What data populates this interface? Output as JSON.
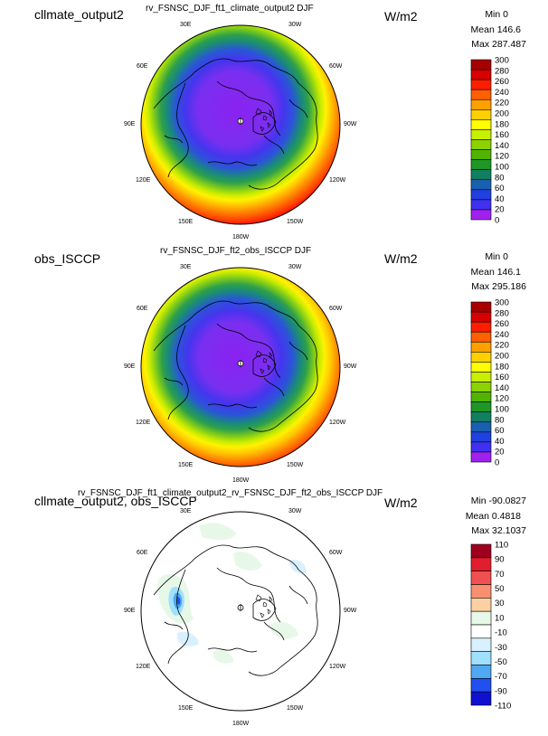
{
  "panels": [
    {
      "id": "p1",
      "left_title": "cllmate_output2",
      "center_title": "rv_FSNSC_DJF_ft1_climate_output2  DJF",
      "units": "W/m2",
      "stats": [
        "Min 0",
        "Mean 146.6",
        "Max 287.487"
      ],
      "colorbar_labels": [
        "300",
        "280",
        "260",
        "240",
        "220",
        "200",
        "180",
        "160",
        "140",
        "120",
        "100",
        "80",
        "60",
        "40",
        "20",
        "0"
      ],
      "colorbar_colors": [
        "#a80000",
        "#d80000",
        "#ff1e00",
        "#ff6000",
        "#ffa000",
        "#ffd000",
        "#ffff00",
        "#c8f000",
        "#8cd200",
        "#50b400",
        "#1e9628",
        "#108060",
        "#1a60b0",
        "#2040e0",
        "#4030f0",
        "#a020f0"
      ],
      "lon_labels": [
        "30E",
        "30W",
        "60E",
        "60W",
        "90E",
        "90W",
        "120E",
        "120W",
        "150E",
        "150W",
        "180W"
      ]
    },
    {
      "id": "p2",
      "left_title": "obs_ISCCP",
      "center_title": "rv_FSNSC_DJF_ft2_obs_ISCCP  DJF",
      "units": "W/m2",
      "stats": [
        "Min 0",
        "Mean 146.1",
        "Max 295.186"
      ],
      "colorbar_labels": [
        "300",
        "280",
        "260",
        "240",
        "220",
        "200",
        "180",
        "160",
        "140",
        "120",
        "100",
        "80",
        "60",
        "40",
        "20",
        "0"
      ],
      "colorbar_colors": [
        "#a80000",
        "#d80000",
        "#ff1e00",
        "#ff6000",
        "#ffa000",
        "#ffd000",
        "#ffff00",
        "#c8f000",
        "#8cd200",
        "#50b400",
        "#1e9628",
        "#108060",
        "#1a60b0",
        "#2040e0",
        "#4030f0",
        "#a020f0"
      ],
      "lon_labels": [
        "30E",
        "30W",
        "60E",
        "60W",
        "90E",
        "90W",
        "120E",
        "120W",
        "150E",
        "150W",
        "180W"
      ]
    },
    {
      "id": "p3",
      "left_title": "cllmate_output2, obs_ISCCP",
      "center_title": "rv_FSNSC_DJF_ft1_climate_output2_rv_FSNSC_DJF_ft2_obs_ISCCP  DJF",
      "units": "W/m2",
      "stats": [
        "Min -90.0827",
        "Mean 0.4818",
        "Max 32.1037"
      ],
      "colorbar_labels": [
        "110",
        "90",
        "70",
        "50",
        "30",
        "10",
        "-10",
        "-30",
        "-50",
        "-70",
        "-90",
        "-110"
      ],
      "colorbar_colors": [
        "#a00020",
        "#e01e2e",
        "#f05050",
        "#f89070",
        "#fcd0a0",
        "#e8f8e8",
        "#ffffff",
        "#d8f0ff",
        "#a0e0ff",
        "#50a8f0",
        "#2050f0",
        "#1010d0"
      ],
      "lon_labels": [
        "30E",
        "30W",
        "60E",
        "60W",
        "90E",
        "90W",
        "120E",
        "120W",
        "150E",
        "150W",
        "180W"
      ]
    }
  ]
}
